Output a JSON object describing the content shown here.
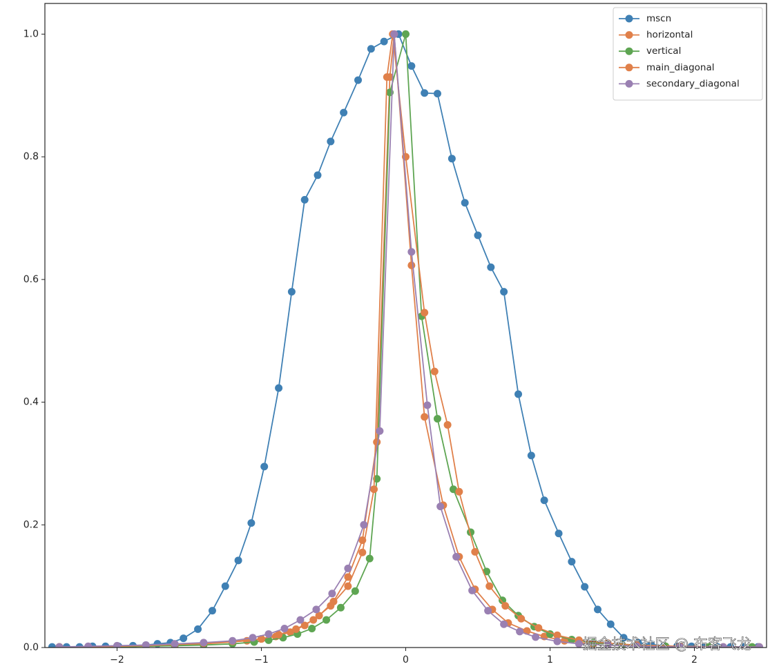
{
  "chart_data": {
    "type": "line",
    "xlim": [
      -2.5,
      2.5
    ],
    "ylim": [
      0,
      1.05
    ],
    "xticks": [
      {
        "value": -2,
        "label": "−2"
      },
      {
        "value": -1,
        "label": "−1"
      },
      0,
      1,
      2
    ],
    "yticks": [
      {
        "value": 0,
        "label": "0.0"
      },
      0.2,
      0.4,
      0.6,
      0.8,
      {
        "value": 1,
        "label": "1.0"
      }
    ],
    "legend": "upper right",
    "watermark": "掘金技术社区 @ 布客飞龙",
    "series": [
      {
        "name": "mscn",
        "color": "#3f80b4",
        "x": [
          -2.45,
          -2.35,
          -2.26,
          -2.17,
          -2.08,
          -1.99,
          -1.89,
          -1.8,
          -1.72,
          -1.63,
          -1.54,
          -1.44,
          -1.34,
          -1.25,
          -1.16,
          -1.07,
          -0.98,
          -0.88,
          -0.79,
          -0.7,
          -0.61,
          -0.52,
          -0.43,
          -0.33,
          -0.24,
          -0.15,
          -0.05,
          0.04,
          0.13,
          0.22,
          0.32,
          0.41,
          0.5,
          0.59,
          0.68,
          0.78,
          0.87,
          0.96,
          1.06,
          1.15,
          1.24,
          1.33,
          1.42,
          1.51,
          1.61,
          1.7,
          1.79,
          1.88,
          1.98,
          2.07,
          2.16,
          2.25,
          2.34,
          2.44
        ],
        "values": [
          0.001,
          0.001,
          0.001,
          0.002,
          0.002,
          0.002,
          0.003,
          0.004,
          0.006,
          0.008,
          0.015,
          0.03,
          0.06,
          0.1,
          0.142,
          0.203,
          0.295,
          0.423,
          0.58,
          0.73,
          0.77,
          0.825,
          0.872,
          0.925,
          0.976,
          0.988,
          1.0,
          0.948,
          0.904,
          0.903,
          0.797,
          0.725,
          0.672,
          0.62,
          0.58,
          0.413,
          0.313,
          0.24,
          0.186,
          0.14,
          0.099,
          0.062,
          0.038,
          0.016,
          0.008,
          0.005,
          0.003,
          0.002,
          0.002,
          0.001,
          0.001,
          0.001,
          0.001,
          0.001
        ]
      },
      {
        "name": "horizontal",
        "color": "#e0804a",
        "x": [
          -2.4,
          -2.2,
          -2.0,
          -1.8,
          -1.6,
          -1.4,
          -1.2,
          -1.1,
          -1.0,
          -0.9,
          -0.8,
          -0.7,
          -0.6,
          -0.5,
          -0.4,
          -0.3,
          -0.2,
          -0.11,
          -0.08,
          0.04,
          0.13,
          0.26,
          0.37,
          0.48,
          0.6,
          0.71,
          0.84,
          0.96,
          1.1,
          1.3,
          1.5,
          1.8,
          2.1,
          2.4
        ],
        "values": [
          0.001,
          0.001,
          0.002,
          0.003,
          0.004,
          0.006,
          0.009,
          0.011,
          0.014,
          0.018,
          0.025,
          0.036,
          0.052,
          0.075,
          0.115,
          0.175,
          0.335,
          0.93,
          1.0,
          0.623,
          0.376,
          0.232,
          0.148,
          0.095,
          0.062,
          0.04,
          0.027,
          0.018,
          0.011,
          0.006,
          0.004,
          0.002,
          0.001,
          0.001
        ]
      },
      {
        "name": "vertical",
        "color": "#5ea552",
        "x": [
          -2.4,
          -2.2,
          -2.0,
          -1.8,
          -1.6,
          -1.4,
          -1.2,
          -1.05,
          -0.95,
          -0.85,
          -0.75,
          -0.65,
          -0.55,
          -0.45,
          -0.35,
          -0.25,
          -0.2,
          -0.11,
          0.0,
          0.11,
          0.22,
          0.33,
          0.45,
          0.56,
          0.67,
          0.78,
          0.89,
          1.0,
          1.15,
          1.3,
          1.5,
          1.8,
          2.1,
          2.4
        ],
        "values": [
          0.001,
          0.001,
          0.001,
          0.002,
          0.003,
          0.004,
          0.006,
          0.009,
          0.012,
          0.016,
          0.022,
          0.031,
          0.045,
          0.065,
          0.092,
          0.145,
          0.275,
          0.905,
          1.0,
          0.54,
          0.373,
          0.258,
          0.188,
          0.124,
          0.077,
          0.052,
          0.034,
          0.022,
          0.013,
          0.008,
          0.004,
          0.002,
          0.001,
          0.001
        ]
      },
      {
        "name": "main_diagonal",
        "color": "#e0804a",
        "x": [
          -2.4,
          -2.2,
          -2.0,
          -1.8,
          -1.6,
          -1.4,
          -1.2,
          -1.0,
          -0.88,
          -0.76,
          -0.64,
          -0.52,
          -0.4,
          -0.3,
          -0.22,
          -0.13,
          -0.09,
          0.0,
          0.13,
          0.2,
          0.29,
          0.37,
          0.48,
          0.58,
          0.69,
          0.8,
          0.92,
          1.05,
          1.2,
          1.4,
          1.6,
          1.9,
          2.2,
          2.45
        ],
        "values": [
          0.001,
          0.001,
          0.002,
          0.003,
          0.005,
          0.007,
          0.01,
          0.014,
          0.021,
          0.03,
          0.045,
          0.068,
          0.1,
          0.155,
          0.258,
          0.93,
          1.0,
          0.8,
          0.546,
          0.45,
          0.363,
          0.254,
          0.156,
          0.1,
          0.068,
          0.047,
          0.032,
          0.02,
          0.012,
          0.007,
          0.004,
          0.002,
          0.001,
          0.001
        ]
      },
      {
        "name": "secondary_diagonal",
        "color": "#9a80b2",
        "x": [
          -2.4,
          -2.2,
          -2.0,
          -1.8,
          -1.6,
          -1.4,
          -1.2,
          -1.06,
          -0.95,
          -0.84,
          -0.73,
          -0.62,
          -0.51,
          -0.4,
          -0.29,
          -0.18,
          -0.08,
          0.04,
          0.15,
          0.24,
          0.35,
          0.46,
          0.57,
          0.68,
          0.79,
          0.9,
          1.05,
          1.2,
          1.4,
          1.6,
          1.9,
          2.2,
          2.45
        ],
        "values": [
          0.001,
          0.002,
          0.003,
          0.004,
          0.006,
          0.008,
          0.011,
          0.016,
          0.022,
          0.031,
          0.045,
          0.062,
          0.088,
          0.129,
          0.2,
          0.353,
          1.0,
          0.645,
          0.395,
          0.23,
          0.148,
          0.093,
          0.06,
          0.038,
          0.026,
          0.017,
          0.01,
          0.006,
          0.004,
          0.002,
          0.001,
          0.001,
          0.001
        ]
      }
    ]
  }
}
